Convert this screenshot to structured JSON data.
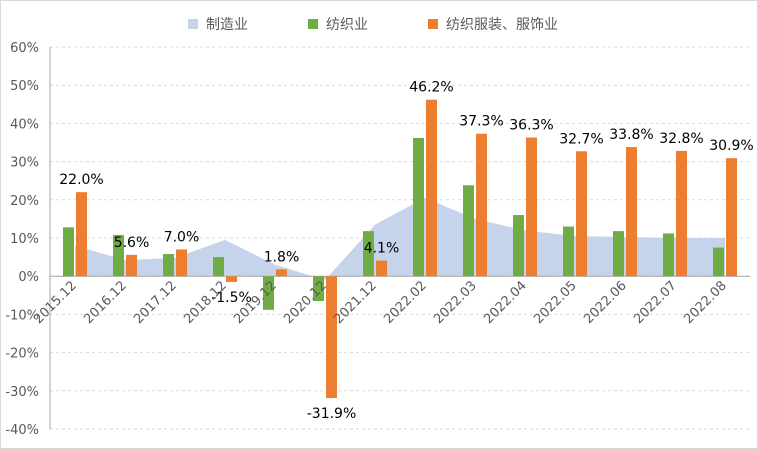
{
  "chart_data": {
    "type": "bar",
    "categories": [
      "2015.12",
      "2016.12",
      "2017.12",
      "2018.12",
      "2019.12",
      "2020.12",
      "2021.12",
      "2022.02",
      "2022.03",
      "2022.04",
      "2022.05",
      "2022.06",
      "2022.07",
      "2022.08"
    ],
    "series": [
      {
        "name": "制造业",
        "kind": "area",
        "color": "#c5d4ea",
        "values": [
          8.0,
          4.2,
          4.8,
          9.5,
          3.0,
          -1.0,
          13.5,
          20.5,
          15.0,
          12.0,
          10.5,
          10.3,
          10.0,
          10.0
        ]
      },
      {
        "name": "纺织业",
        "kind": "bar",
        "color": "#6fac46",
        "values": [
          12.8,
          10.8,
          5.8,
          5.0,
          -8.8,
          -6.5,
          11.8,
          36.2,
          23.8,
          16.0,
          13.0,
          11.8,
          11.2,
          7.5
        ]
      },
      {
        "name": "纺织服装、服饰业",
        "kind": "bar",
        "color": "#ed7d31",
        "values": [
          22.0,
          5.6,
          7.0,
          -1.5,
          1.8,
          -31.9,
          4.1,
          46.2,
          37.3,
          36.3,
          32.7,
          33.8,
          32.8,
          30.9
        ]
      }
    ],
    "data_labels": [
      "22.0%",
      "5.6%",
      "7.0%",
      "-1.5%",
      "1.8%",
      "-31.9%",
      "4.1%",
      "46.2%",
      "37.3%",
      "36.3%",
      "32.7%",
      "33.8%",
      "32.8%",
      "30.9%"
    ],
    "yticks": [
      "-40%",
      "-30%",
      "-20%",
      "-10%",
      "0%",
      "10%",
      "20%",
      "30%",
      "40%",
      "50%",
      "60%"
    ],
    "ylim": [
      -40,
      60
    ],
    "grid": true,
    "legend_position": "top",
    "title": "",
    "xlabel": "",
    "ylabel": ""
  }
}
